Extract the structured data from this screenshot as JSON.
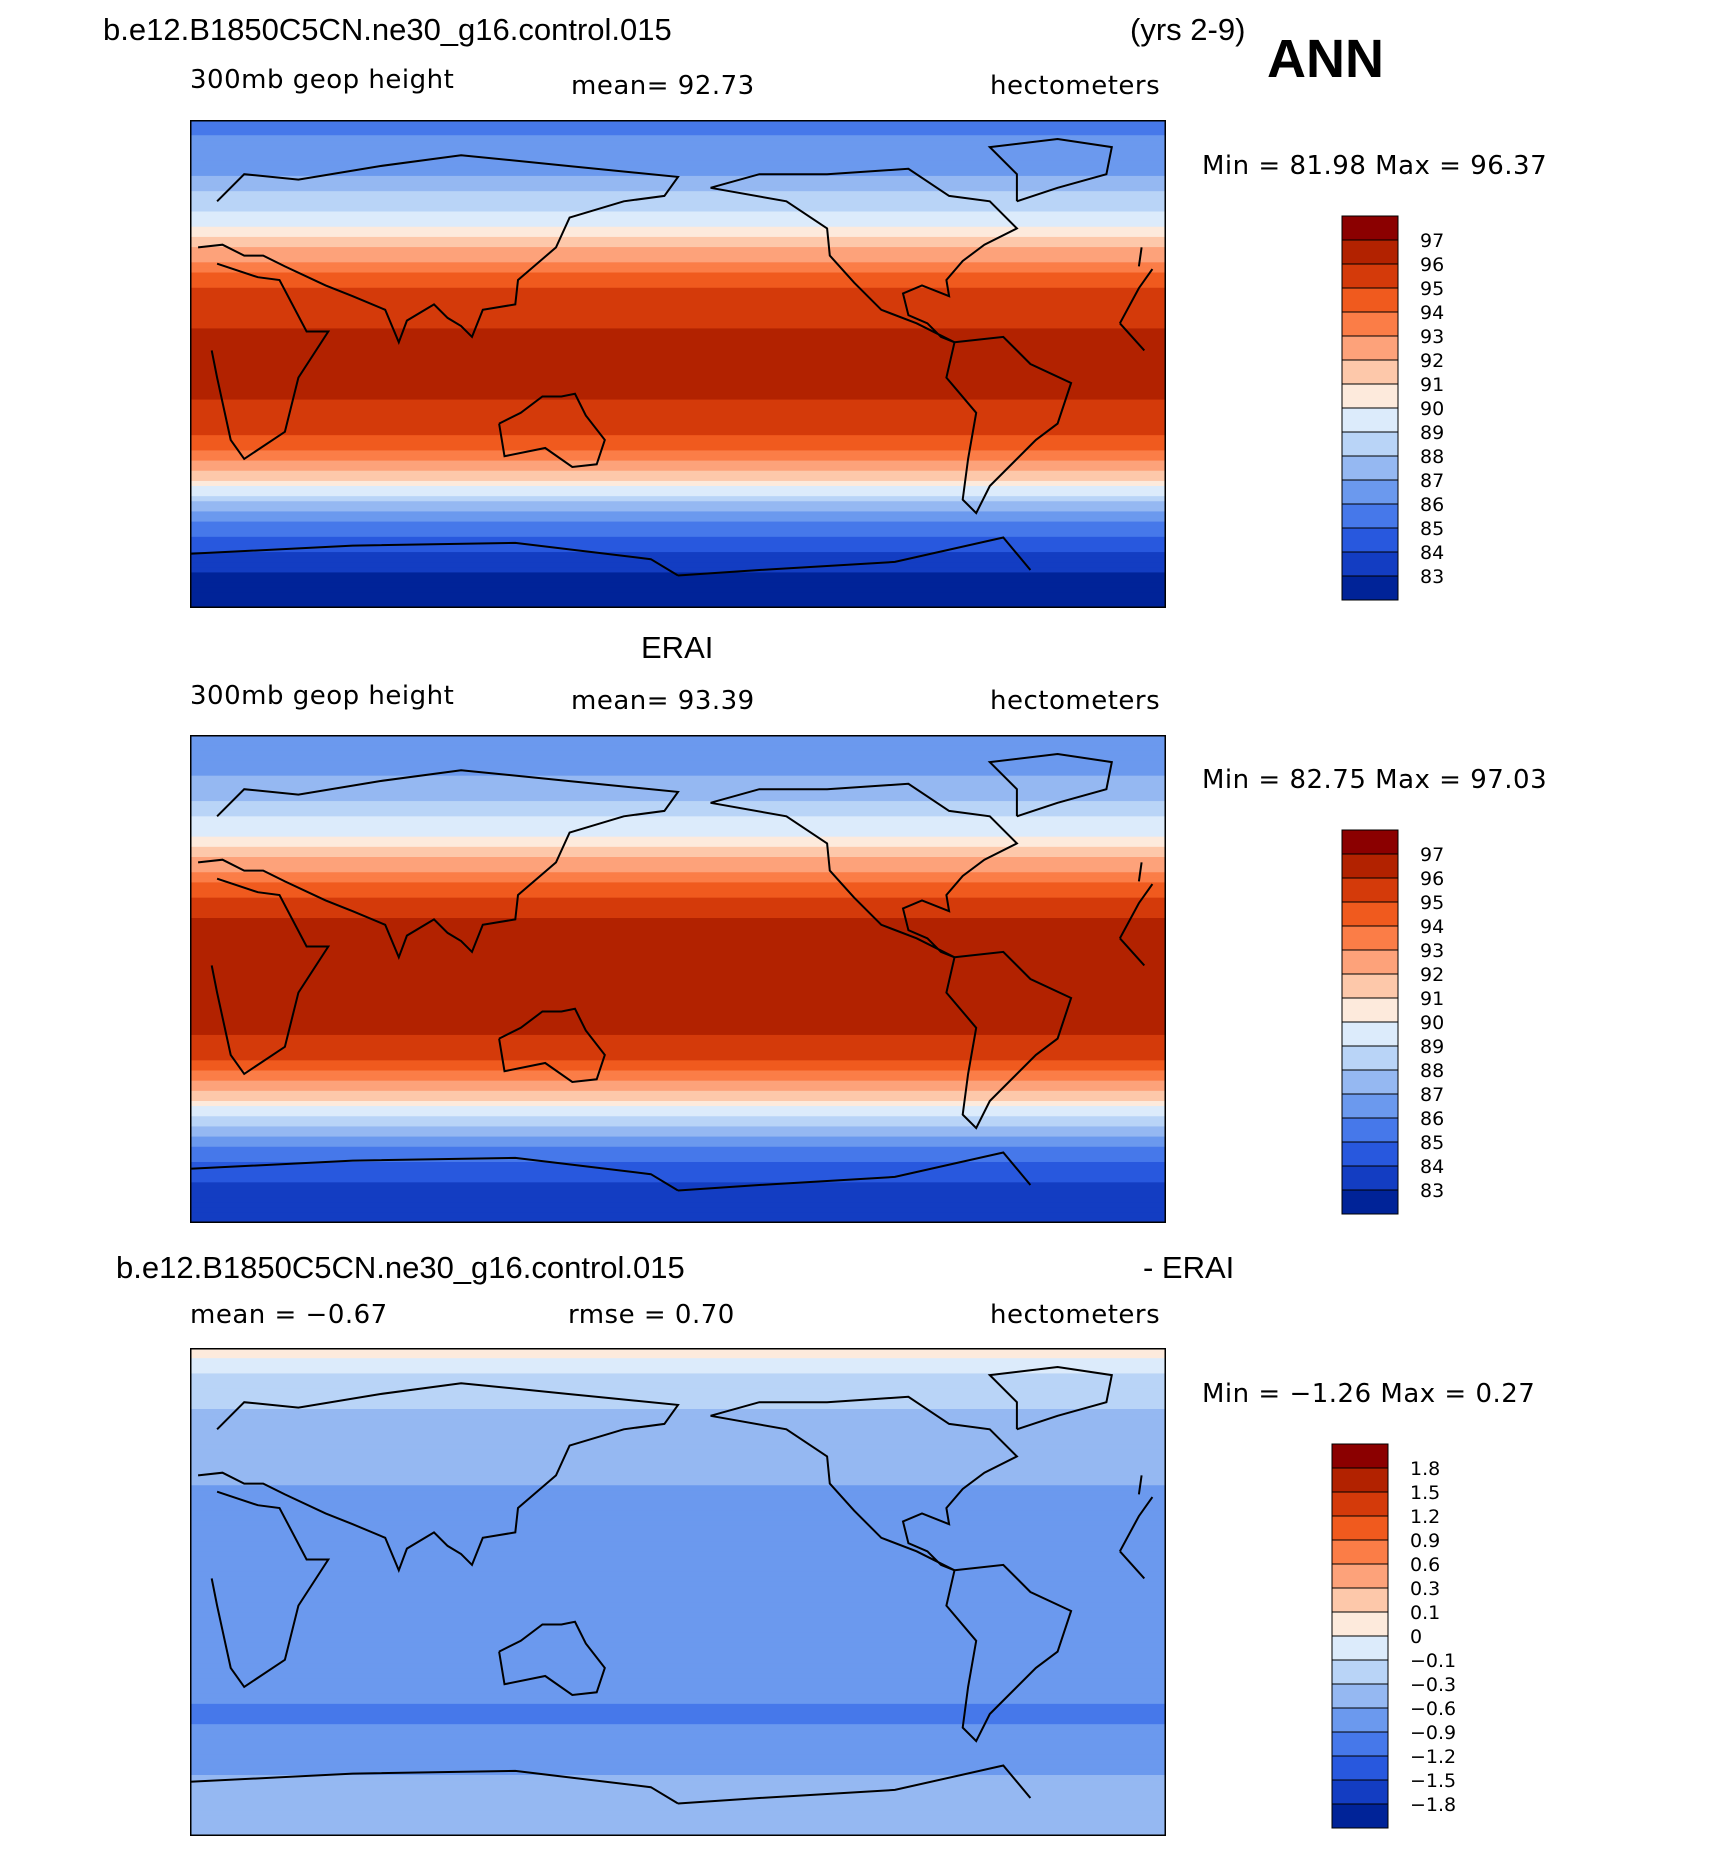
{
  "header": {
    "case_name": "b.e12.B1850C5CN.ne30_g16.control.015",
    "years": "(yrs 2-9)",
    "season": "ANN"
  },
  "panels": [
    {
      "title": "",
      "left_label": "300mb  geop  height",
      "center_label": "mean=   92.73",
      "right_label": "hectometers",
      "minmax": "Min  =   81.98  Max  =   96.37",
      "colorbar": {
        "labels": [
          "97",
          "96",
          "95",
          "94",
          "93",
          "92",
          "91",
          "90",
          "89",
          "88",
          "87",
          "86",
          "85",
          "84",
          "83"
        ],
        "colors": [
          "#8b0000",
          "#b22200",
          "#d43a0a",
          "#f05a1e",
          "#fb7d47",
          "#fda27a",
          "#fdc8aa",
          "#fdeadc",
          "#dcebfb",
          "#b9d4f7",
          "#95b8f2",
          "#6b99ee",
          "#4678ea",
          "#2858de",
          "#133dc2",
          "#002398"
        ]
      },
      "chart_data": {
        "type": "heatmap",
        "variable": "300mb geop height",
        "units": "hectometers",
        "mean": 92.73,
        "min": 81.98,
        "max": 96.37,
        "contour_levels": [
          83,
          84,
          85,
          86,
          87,
          88,
          89,
          90,
          91,
          92,
          93,
          94,
          95,
          96,
          97
        ],
        "zonal_profile": [
          {
            "lat": 90,
            "value": 85.6
          },
          {
            "lat": 70,
            "value": 87.0
          },
          {
            "lat": 55,
            "value": 89.2
          },
          {
            "lat": 45,
            "value": 91.3
          },
          {
            "lat": 35,
            "value": 93.8
          },
          {
            "lat": 25,
            "value": 95.4
          },
          {
            "lat": 10,
            "value": 96.2
          },
          {
            "lat": 0,
            "value": 96.3
          },
          {
            "lat": -10,
            "value": 96.2
          },
          {
            "lat": -25,
            "value": 95.3
          },
          {
            "lat": -35,
            "value": 93.2
          },
          {
            "lat": -45,
            "value": 90.2
          },
          {
            "lat": -55,
            "value": 86.8
          },
          {
            "lat": -65,
            "value": 84.6
          },
          {
            "lat": -75,
            "value": 83.2
          },
          {
            "lat": -90,
            "value": 82.0
          }
        ]
      }
    },
    {
      "title": "ERAI",
      "left_label": "300mb  geop  height",
      "center_label": "mean=   93.39",
      "right_label": "hectometers",
      "minmax": "Min  =   82.75  Max  =   97.03",
      "colorbar": {
        "labels": [
          "97",
          "96",
          "95",
          "94",
          "93",
          "92",
          "91",
          "90",
          "89",
          "88",
          "87",
          "86",
          "85",
          "84",
          "83"
        ],
        "colors": [
          "#8b0000",
          "#b22200",
          "#d43a0a",
          "#f05a1e",
          "#fb7d47",
          "#fda27a",
          "#fdc8aa",
          "#fdeadc",
          "#dcebfb",
          "#b9d4f7",
          "#95b8f2",
          "#6b99ee",
          "#4678ea",
          "#2858de",
          "#133dc2",
          "#002398"
        ]
      },
      "chart_data": {
        "type": "heatmap",
        "variable": "300mb geop height",
        "units": "hectometers",
        "mean": 93.39,
        "min": 82.75,
        "max": 97.03,
        "contour_levels": [
          83,
          84,
          85,
          86,
          87,
          88,
          89,
          90,
          91,
          92,
          93,
          94,
          95,
          96,
          97
        ],
        "zonal_profile": [
          {
            "lat": 90,
            "value": 86.0
          },
          {
            "lat": 70,
            "value": 87.4
          },
          {
            "lat": 55,
            "value": 89.6
          },
          {
            "lat": 45,
            "value": 91.8
          },
          {
            "lat": 35,
            "value": 94.3
          },
          {
            "lat": 25,
            "value": 95.9
          },
          {
            "lat": 10,
            "value": 96.6
          },
          {
            "lat": 0,
            "value": 96.6
          },
          {
            "lat": -10,
            "value": 96.5
          },
          {
            "lat": -25,
            "value": 95.8
          },
          {
            "lat": -35,
            "value": 93.9
          },
          {
            "lat": -45,
            "value": 90.8
          },
          {
            "lat": -55,
            "value": 87.5
          },
          {
            "lat": -65,
            "value": 85.3
          },
          {
            "lat": -75,
            "value": 83.9
          },
          {
            "lat": -90,
            "value": 83.3
          }
        ]
      }
    },
    {
      "title": "",
      "left_label": "mean  =   −0.67",
      "center_label": "rmse  =    0.70",
      "right_label": "hectometers",
      "minmax": "Min  =   −1.26  Max  =    0.27",
      "colorbar": {
        "labels": [
          "1.8",
          "1.5",
          "1.2",
          "0.9",
          "0.6",
          "0.3",
          "0.1",
          "0",
          "−0.1",
          "−0.3",
          "−0.6",
          "−0.9",
          "−1.2",
          "−1.5",
          "−1.8"
        ],
        "colors": [
          "#8b0000",
          "#b22200",
          "#d43a0a",
          "#f05a1e",
          "#fb7d47",
          "#fda27a",
          "#fdc8aa",
          "#fdeadc",
          "#dcebfb",
          "#b9d4f7",
          "#95b8f2",
          "#6b99ee",
          "#4678ea",
          "#2858de",
          "#133dc2",
          "#002398"
        ]
      },
      "chart_data": {
        "type": "heatmap",
        "variable": "difference",
        "units": "hectometers",
        "mean": -0.67,
        "rmse": 0.7,
        "min": -1.26,
        "max": 0.27,
        "contour_levels": [
          -1.8,
          -1.5,
          -1.2,
          -0.9,
          -0.6,
          -0.3,
          -0.1,
          0,
          0.1,
          0.3,
          0.6,
          0.9,
          1.2,
          1.5,
          1.8
        ],
        "zonal_profile": [
          {
            "lat": 90,
            "value": 0.05
          },
          {
            "lat": 75,
            "value": -0.2
          },
          {
            "lat": 60,
            "value": -0.4
          },
          {
            "lat": 45,
            "value": -0.55
          },
          {
            "lat": 30,
            "value": -0.7
          },
          {
            "lat": 15,
            "value": -0.65
          },
          {
            "lat": 0,
            "value": -0.6
          },
          {
            "lat": -15,
            "value": -0.65
          },
          {
            "lat": -30,
            "value": -0.75
          },
          {
            "lat": -45,
            "value": -0.95
          },
          {
            "lat": -60,
            "value": -0.75
          },
          {
            "lat": -75,
            "value": -0.45
          },
          {
            "lat": -90,
            "value": -0.5
          }
        ]
      }
    }
  ],
  "diff_title": {
    "left": "b.e12.B1850C5CN.ne30_g16.control.015",
    "right": "- ERAI"
  }
}
